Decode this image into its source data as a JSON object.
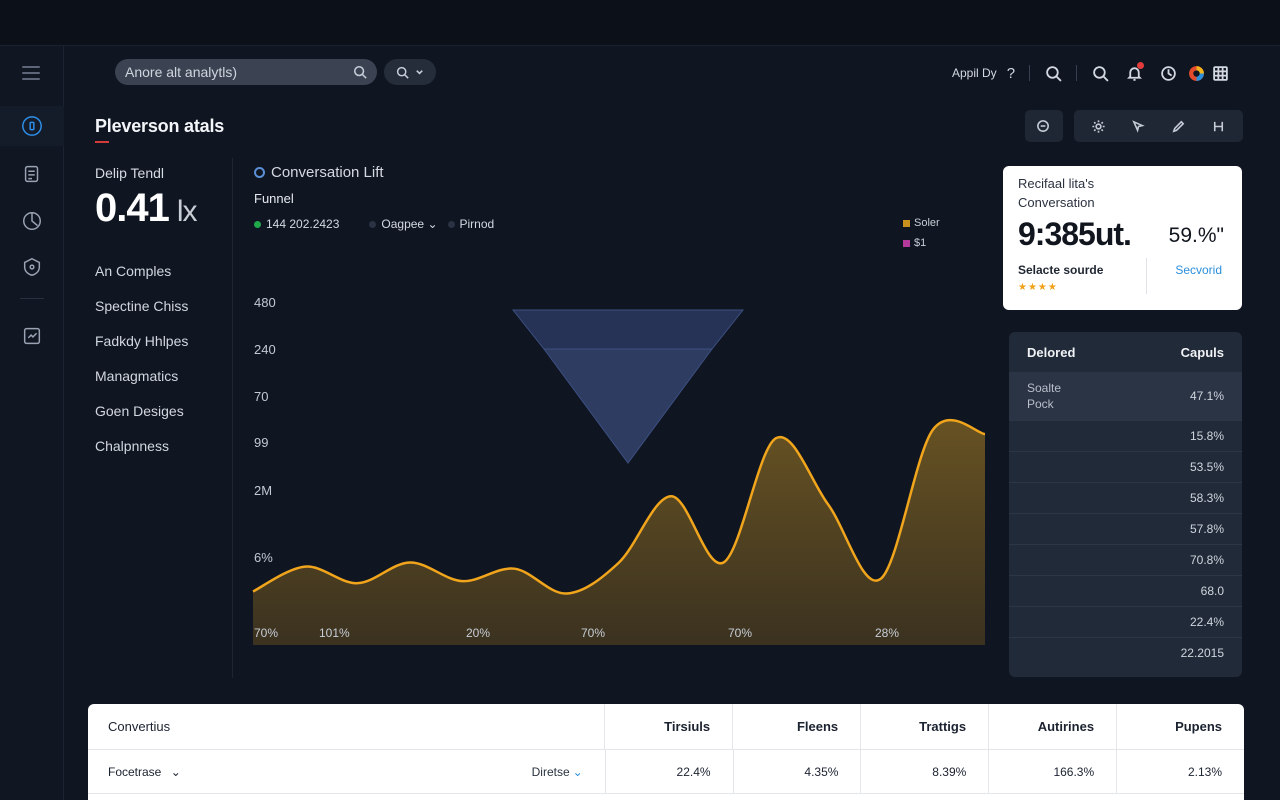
{
  "header": {
    "search_placeholder": "Anore alt analytls)",
    "label": "Appil Dy",
    "help": "?"
  },
  "page": {
    "title": "Pleverson atals"
  },
  "metric": {
    "label": "Delip Tendl",
    "value": "0.41",
    "unit": "lx"
  },
  "nav_list": [
    "An Comples",
    "Spectine Chiss",
    "Fadkdy Hhlpes",
    "Managmatics",
    "Goen Desiges",
    "Chalpnness"
  ],
  "chart_header": {
    "title": "Conversation Lift",
    "subtitle": "Funnel",
    "filters": [
      {
        "label": "144 202.2423",
        "color": "#1fa94b"
      },
      {
        "label": "Oagpee ⌄",
        "color": "#2a3344"
      },
      {
        "label": "Pirnod",
        "color": "#2a3344"
      }
    ],
    "legend": [
      {
        "label": "Soler",
        "color": "#c8901c"
      },
      {
        "label": "$1",
        "color": "#b3399b"
      }
    ]
  },
  "chart_data": {
    "type": "area",
    "y_tick_labels": [
      "480",
      "240",
      "70",
      "99",
      "2M",
      "6%"
    ],
    "x_tick_labels": [
      "70%",
      "101%",
      "20%",
      "70%",
      "70%",
      "28%"
    ],
    "series": [
      {
        "color": "#f0a51c",
        "y_fraction": [
          0.22,
          0.34,
          0.26,
          0.36,
          0.27,
          0.33,
          0.21,
          0.36,
          0.68,
          0.36,
          0.96,
          0.64,
          0.28,
          1.0,
          0.98
        ]
      }
    ],
    "funnel": {
      "color": "#3a4a72"
    }
  },
  "summary_card": {
    "line1": "Recifaal lita's",
    "line2": "Conversation",
    "value": "9:385ut.",
    "percent": "59.%\"",
    "source": "Selacte sourde",
    "stars": "★★★★",
    "link": "Secvorid"
  },
  "side_table": {
    "header": [
      "Delored",
      "Capuls"
    ],
    "first_row": {
      "label1": "Soalte",
      "label2": "Pock",
      "value": "47.1%"
    },
    "values": [
      "15.8%",
      "53.5%",
      "58.3%",
      "57.8%",
      "70.8%",
      "68.0",
      "22.4%",
      "22.2015"
    ]
  },
  "bottom_table": {
    "headers": [
      "Convertius",
      "Tirsiuls",
      "Fleens",
      "Trattigs",
      "Autirines",
      "Pupens"
    ],
    "row": {
      "name": "Focetrase",
      "dropdown": "Diretse",
      "values": [
        "22.4%",
        "4.35%",
        "8.39%",
        "166.3%",
        "2.13%"
      ]
    }
  }
}
